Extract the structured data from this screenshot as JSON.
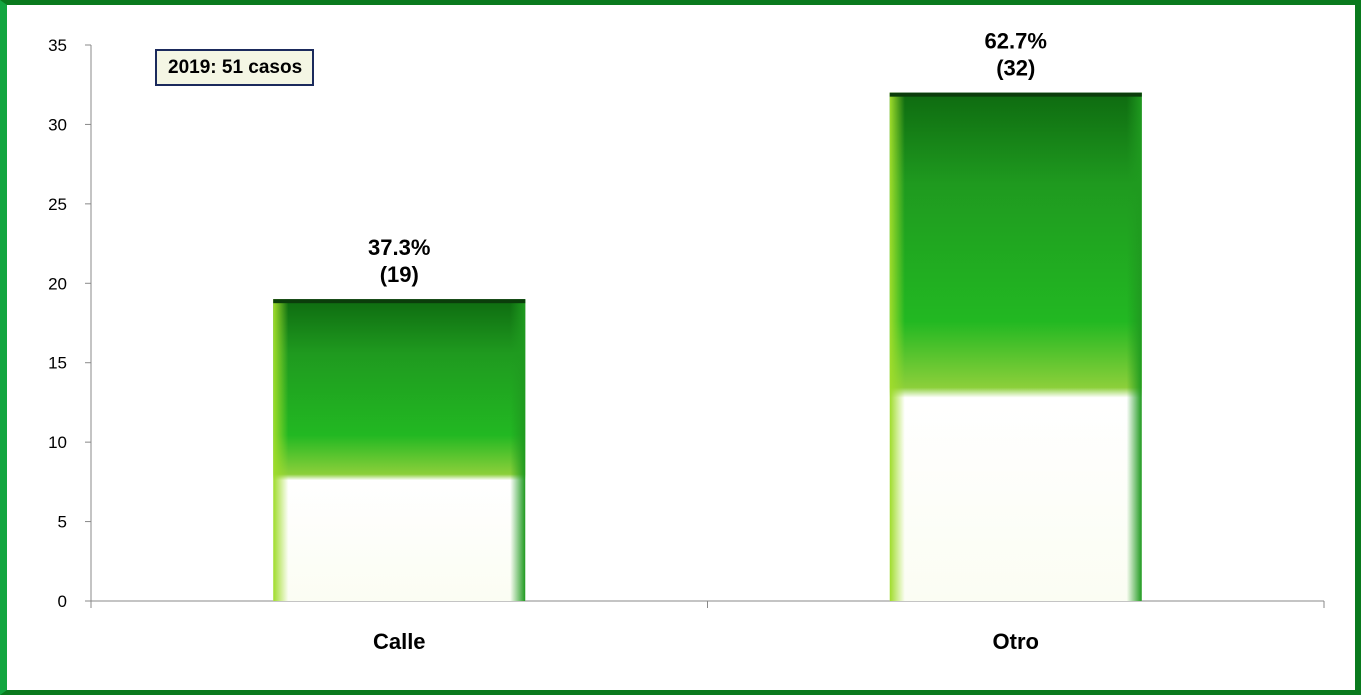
{
  "colors": {
    "frame_border": "#0a7a1e",
    "bar_top": "#0e6b10",
    "bar_mid": "#22b822",
    "bar_light": "#ffffff",
    "annotation_background": "#f4f6e4",
    "annotation_border": "#1b2a5c"
  },
  "chart_data": {
    "type": "bar",
    "categories": [
      "Calle",
      "Otro"
    ],
    "values": [
      19,
      32
    ],
    "data_labels": [
      {
        "percent": "37.3%",
        "count": "(19)"
      },
      {
        "percent": "62.7%",
        "count": "(32)"
      }
    ],
    "annotation": "2019: 51 casos",
    "ylim": [
      0,
      35
    ],
    "yticks": [
      "0",
      "5",
      "10",
      "15",
      "20",
      "25",
      "30",
      "35"
    ],
    "grid": false,
    "legend": "none",
    "title": "",
    "xlabel": "",
    "ylabel": ""
  }
}
